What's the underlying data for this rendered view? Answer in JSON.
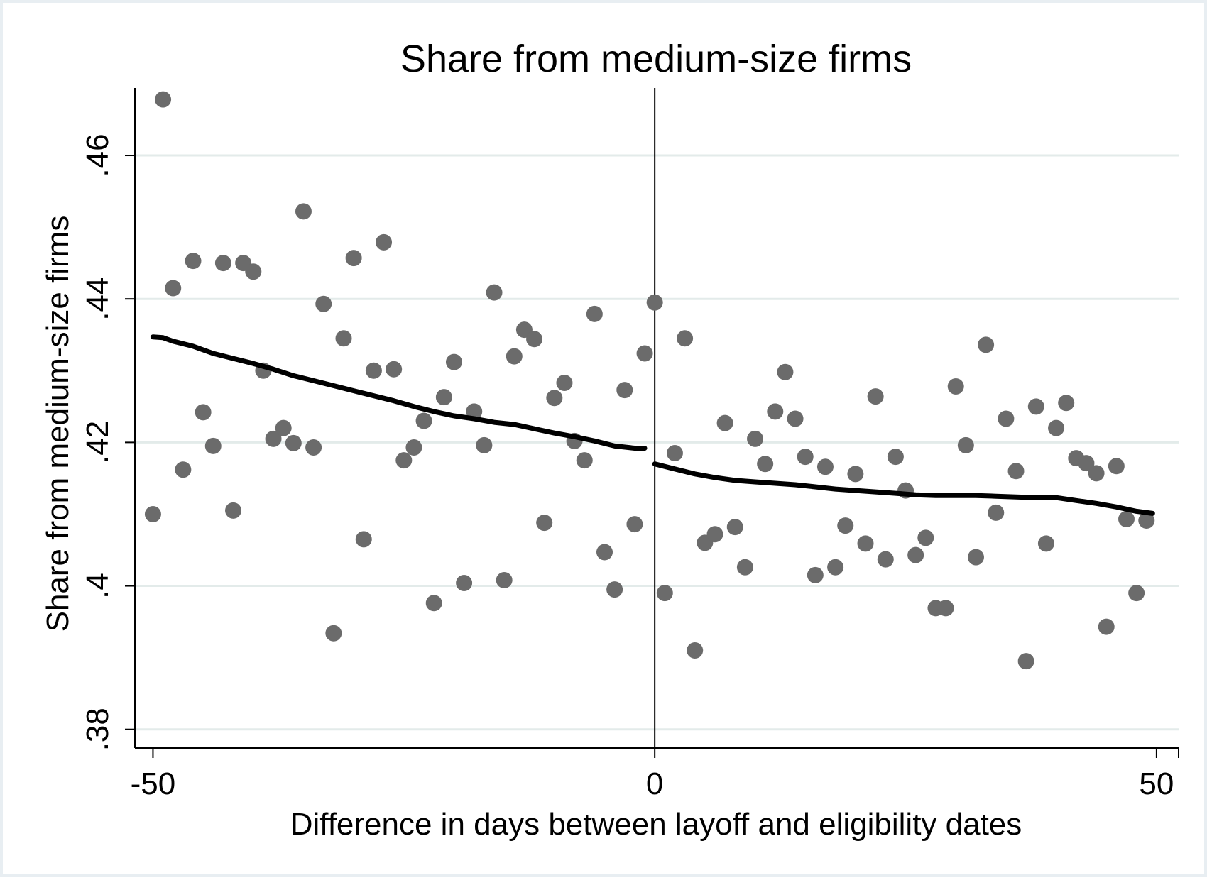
{
  "chart_data": {
    "type": "scatter",
    "title": "Share from medium-size firms",
    "xlabel": "Difference in days between layoff and eligibility dates",
    "ylabel": "Share from medium-size firms",
    "xlim": [
      -51.8,
      52.2
    ],
    "ylim": [
      0.3774,
      0.4694
    ],
    "x_ticks": [
      -50,
      0,
      50
    ],
    "x_tick_labels": [
      "-50",
      "0",
      "50"
    ],
    "y_ticks": [
      0.38,
      0.4,
      0.42,
      0.44,
      0.46
    ],
    "y_tick_labels": [
      ".38",
      ".4",
      ".42",
      ".44",
      ".46"
    ],
    "grid": "horizontal",
    "cutoff_x": 0,
    "colors": {
      "points": "#6b6b6b",
      "fit_line": "#000000",
      "grid": "#e3ebea",
      "axes": "#000000"
    },
    "series": [
      {
        "type": "scatter",
        "points": [
          [
            -50,
            0.41
          ],
          [
            -49,
            0.4678
          ],
          [
            -48,
            0.4415
          ],
          [
            -47,
            0.4162
          ],
          [
            -46,
            0.4453
          ],
          [
            -45,
            0.4242
          ],
          [
            -44,
            0.4195
          ],
          [
            -43,
            0.445
          ],
          [
            -42,
            0.4105
          ],
          [
            -41,
            0.445
          ],
          [
            -40,
            0.4438
          ],
          [
            -39,
            0.43
          ],
          [
            -38,
            0.4205
          ],
          [
            -37,
            0.422
          ],
          [
            -36,
            0.4199
          ],
          [
            -35,
            0.4522
          ],
          [
            -34,
            0.4193
          ],
          [
            -33,
            0.4393
          ],
          [
            -32,
            0.3934
          ],
          [
            -31,
            0.4345
          ],
          [
            -30,
            0.4457
          ],
          [
            -29,
            0.4065
          ],
          [
            -28,
            0.43
          ],
          [
            -27,
            0.4479
          ],
          [
            -26,
            0.4302
          ],
          [
            -25,
            0.4175
          ],
          [
            -24,
            0.4193
          ],
          [
            -23,
            0.423
          ],
          [
            -22,
            0.3976
          ],
          [
            -21,
            0.4263
          ],
          [
            -20,
            0.4312
          ],
          [
            -19,
            0.4004
          ],
          [
            -18,
            0.4243
          ],
          [
            -17,
            0.4196
          ],
          [
            -16,
            0.4409
          ],
          [
            -15,
            0.4008
          ],
          [
            -14,
            0.432
          ],
          [
            -13,
            0.4357
          ],
          [
            -12,
            0.4344
          ],
          [
            -11,
            0.4088
          ],
          [
            -10,
            0.4262
          ],
          [
            -9,
            0.4283
          ],
          [
            -8,
            0.4202
          ],
          [
            -7,
            0.4175
          ],
          [
            -6,
            0.4379
          ],
          [
            -5,
            0.4047
          ],
          [
            -4,
            0.3995
          ],
          [
            -3,
            0.4273
          ],
          [
            -2,
            0.4086
          ],
          [
            -1,
            0.4324
          ],
          [
            0,
            0.4395
          ],
          [
            1,
            0.399
          ],
          [
            2,
            0.4185
          ],
          [
            3,
            0.4345
          ],
          [
            4,
            0.391
          ],
          [
            5,
            0.406
          ],
          [
            6,
            0.4072
          ],
          [
            7,
            0.4227
          ],
          [
            8,
            0.4082
          ],
          [
            9,
            0.4026
          ],
          [
            10,
            0.4205
          ],
          [
            11,
            0.417
          ],
          [
            12,
            0.4243
          ],
          [
            13,
            0.4298
          ],
          [
            14,
            0.4233
          ],
          [
            15,
            0.418
          ],
          [
            16,
            0.4015
          ],
          [
            17,
            0.4166
          ],
          [
            18,
            0.4026
          ],
          [
            19,
            0.4084
          ],
          [
            20,
            0.4156
          ],
          [
            21,
            0.4059
          ],
          [
            22,
            0.4264
          ],
          [
            23,
            0.4037
          ],
          [
            24,
            0.418
          ],
          [
            25,
            0.4133
          ],
          [
            26,
            0.4043
          ],
          [
            27,
            0.4067
          ],
          [
            28,
            0.3969
          ],
          [
            29,
            0.3969
          ],
          [
            30,
            0.4278
          ],
          [
            31,
            0.4196
          ],
          [
            32,
            0.404
          ],
          [
            33,
            0.4336
          ],
          [
            34,
            0.4102
          ],
          [
            35,
            0.4233
          ],
          [
            36,
            0.416
          ],
          [
            37,
            0.3895
          ],
          [
            38,
            0.425
          ],
          [
            39,
            0.4059
          ],
          [
            40,
            0.422
          ],
          [
            41,
            0.4255
          ],
          [
            42,
            0.4178
          ],
          [
            43,
            0.4171
          ],
          [
            44,
            0.4157
          ],
          [
            45,
            0.3943
          ],
          [
            46,
            0.4167
          ],
          [
            47,
            0.4093
          ],
          [
            48,
            0.399
          ],
          [
            49,
            0.4091
          ]
        ]
      },
      {
        "type": "line",
        "segment": "left",
        "points": [
          [
            -50,
            0.4347
          ],
          [
            -49,
            0.4346
          ],
          [
            -48,
            0.4341
          ],
          [
            -46,
            0.4334
          ],
          [
            -44,
            0.4324
          ],
          [
            -42,
            0.4317
          ],
          [
            -40,
            0.431
          ],
          [
            -38,
            0.4302
          ],
          [
            -36,
            0.4293
          ],
          [
            -34,
            0.4286
          ],
          [
            -32,
            0.4279
          ],
          [
            -30,
            0.4272
          ],
          [
            -28,
            0.4265
          ],
          [
            -26,
            0.4258
          ],
          [
            -24,
            0.425
          ],
          [
            -22,
            0.4243
          ],
          [
            -20,
            0.4237
          ],
          [
            -18,
            0.4233
          ],
          [
            -16,
            0.4228
          ],
          [
            -14,
            0.4225
          ],
          [
            -12,
            0.4219
          ],
          [
            -10,
            0.4213
          ],
          [
            -8,
            0.4208
          ],
          [
            -6,
            0.4202
          ],
          [
            -4,
            0.4195
          ],
          [
            -2,
            0.4192
          ],
          [
            -1,
            0.4192
          ]
        ]
      },
      {
        "type": "line",
        "segment": "right",
        "points": [
          [
            0,
            0.417
          ],
          [
            2,
            0.4163
          ],
          [
            4,
            0.4156
          ],
          [
            6,
            0.4151
          ],
          [
            8,
            0.4147
          ],
          [
            10,
            0.4145
          ],
          [
            12,
            0.4143
          ],
          [
            14,
            0.4141
          ],
          [
            16,
            0.4138
          ],
          [
            18,
            0.4135
          ],
          [
            20,
            0.4133
          ],
          [
            22,
            0.4131
          ],
          [
            24,
            0.4129
          ],
          [
            26,
            0.4127
          ],
          [
            28,
            0.4126
          ],
          [
            30,
            0.4126
          ],
          [
            32,
            0.4126
          ],
          [
            34,
            0.4125
          ],
          [
            36,
            0.4124
          ],
          [
            38,
            0.4123
          ],
          [
            40,
            0.4123
          ],
          [
            42,
            0.4119
          ],
          [
            44,
            0.4115
          ],
          [
            46,
            0.411
          ],
          [
            48,
            0.4104
          ],
          [
            49.6,
            0.4101
          ]
        ]
      }
    ]
  }
}
